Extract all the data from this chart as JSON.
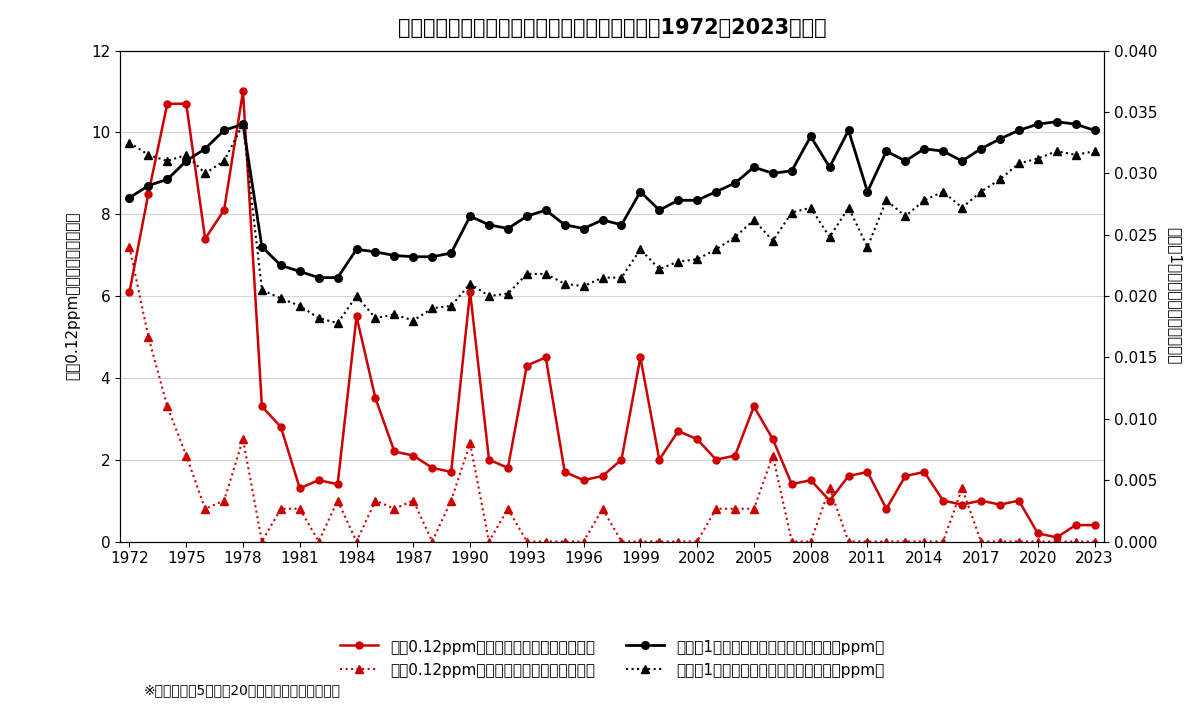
{
  "title": "大阪府内における光化学オキシダントの推移（1972〜2023年度）",
  "ylabel_left": "昼間0.12ppm以上の日数（赤線）",
  "ylabel_right": "昼間の1時間値の年平均（黒線）",
  "xlabel": "",
  "years": [
    1972,
    1973,
    1974,
    1975,
    1976,
    1977,
    1978,
    1979,
    1980,
    1981,
    1982,
    1983,
    1984,
    1985,
    1986,
    1987,
    1988,
    1989,
    1990,
    1991,
    1992,
    1993,
    1994,
    1995,
    1996,
    1997,
    1998,
    1999,
    2000,
    2001,
    2002,
    2003,
    2004,
    2005,
    2006,
    2007,
    2008,
    2009,
    2010,
    2011,
    2012,
    2013,
    2014,
    2015,
    2016,
    2017,
    2018,
    2019,
    2020,
    2021,
    2022,
    2023
  ],
  "days_general": [
    6.1,
    8.5,
    10.7,
    10.7,
    7.4,
    8.1,
    11.0,
    3.3,
    2.8,
    1.3,
    1.5,
    1.4,
    5.5,
    3.5,
    2.2,
    2.1,
    1.8,
    1.7,
    6.1,
    2.0,
    1.8,
    4.3,
    4.5,
    1.7,
    1.5,
    1.6,
    2.0,
    4.5,
    2.0,
    2.7,
    2.5,
    2.0,
    2.1,
    3.3,
    2.5,
    1.4,
    1.5,
    1.0,
    1.6,
    1.7,
    0.8,
    1.6,
    1.7,
    1.0,
    0.9,
    1.0,
    0.9,
    1.0,
    0.2,
    0.1,
    0.4,
    0.4
  ],
  "days_jissha": [
    7.2,
    5.0,
    3.3,
    2.1,
    0.8,
    1.0,
    2.5,
    0.0,
    0.8,
    0.8,
    0.0,
    1.0,
    0.0,
    1.0,
    0.8,
    1.0,
    0.0,
    1.0,
    2.4,
    0.0,
    0.8,
    0.0,
    0.0,
    0.0,
    0.0,
    0.8,
    0.0,
    0.0,
    0.0,
    0.0,
    0.0,
    0.8,
    0.8,
    0.8,
    2.1,
    0.0,
    0.0,
    1.3,
    0.0,
    0.0,
    0.0,
    0.0,
    0.0,
    0.0,
    1.3,
    0.0,
    0.0,
    0.0,
    0.0,
    0.0,
    0.0,
    0.0
  ],
  "ppm_general": [
    0.028,
    0.029,
    0.0295,
    0.031,
    0.032,
    0.0335,
    0.034,
    0.024,
    0.0225,
    0.022,
    0.0215,
    0.0215,
    0.0238,
    0.0236,
    0.0233,
    0.0232,
    0.0232,
    0.0235,
    0.0265,
    0.0258,
    0.0255,
    0.0265,
    0.027,
    0.0258,
    0.0255,
    0.0262,
    0.0258,
    0.0285,
    0.027,
    0.0278,
    0.0278,
    0.0285,
    0.0292,
    0.0305,
    0.03,
    0.0302,
    0.033,
    0.0305,
    0.0335,
    0.0285,
    0.0318,
    0.031,
    0.032,
    0.0318,
    0.031,
    0.032,
    0.0328,
    0.0335,
    0.034,
    0.0342,
    0.034,
    0.0335
  ],
  "ppm_jissha": [
    0.0325,
    0.0315,
    0.031,
    0.0315,
    0.03,
    0.031,
    0.034,
    0.0205,
    0.0198,
    0.0192,
    0.0182,
    0.0178,
    0.02,
    0.0182,
    0.0185,
    0.018,
    0.019,
    0.0192,
    0.021,
    0.02,
    0.0202,
    0.0218,
    0.0218,
    0.021,
    0.0208,
    0.0215,
    0.0215,
    0.0238,
    0.0222,
    0.0228,
    0.023,
    0.0238,
    0.0248,
    0.0262,
    0.0245,
    0.0268,
    0.0272,
    0.0248,
    0.0272,
    0.024,
    0.0278,
    0.0265,
    0.0278,
    0.0285,
    0.0272,
    0.0285,
    0.0295,
    0.0308,
    0.0312,
    0.0318,
    0.0315,
    0.0318
  ],
  "ylim_left": [
    0,
    12
  ],
  "ylim_right": [
    0,
    0.04
  ],
  "yticks_left": [
    0,
    2,
    4,
    6,
    8,
    10,
    12
  ],
  "yticks_right": [
    0,
    0.005,
    0.01,
    0.015,
    0.02,
    0.025,
    0.03,
    0.035,
    0.04
  ],
  "xticks": [
    1972,
    1975,
    1978,
    1981,
    1984,
    1987,
    1990,
    1993,
    1996,
    1999,
    2002,
    2005,
    2008,
    2011,
    2014,
    2017,
    2020,
    2023
  ],
  "color_red": "#cc0000",
  "color_black": "#000000",
  "legend_items": [
    "昭間0.12ppm以上の日数（一般局）（日）",
    "昭間0.12ppm以上の日数（自排局）（日）",
    "昭間の1時間値の年平均値（一般局）（ppm）",
    "昭間の1時間値の年平均値（自排局）（ppm）"
  ],
  "note": "※昭間とは、5時か刄20時までの時間帯をいう。"
}
